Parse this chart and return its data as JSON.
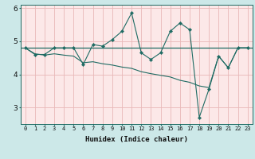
{
  "xlabel": "Humidex (Indice chaleur)",
  "fig_background": "#cce8e8",
  "plot_background": "#fce8e8",
  "line_color": "#1e6b63",
  "grid_color": "#e8b8b8",
  "spine_color": "#1e6b63",
  "x_values": [
    0,
    1,
    2,
    3,
    4,
    5,
    6,
    7,
    8,
    9,
    10,
    11,
    12,
    13,
    14,
    15,
    16,
    17,
    18,
    19,
    20,
    21,
    22,
    23
  ],
  "y_main": [
    4.8,
    4.6,
    4.6,
    4.8,
    4.8,
    4.8,
    4.3,
    4.9,
    4.85,
    5.05,
    5.3,
    5.85,
    4.65,
    4.45,
    4.65,
    5.3,
    5.55,
    5.35,
    2.7,
    3.55,
    4.55,
    4.2,
    4.8,
    4.8
  ],
  "y_trend": [
    4.8,
    4.62,
    4.58,
    4.62,
    4.58,
    4.55,
    4.35,
    4.38,
    4.32,
    4.28,
    4.22,
    4.18,
    4.08,
    4.02,
    3.97,
    3.92,
    3.82,
    3.76,
    3.65,
    3.6,
    4.55,
    4.2,
    4.8,
    4.8
  ],
  "y_avg": 4.8,
  "ylim": [
    2.5,
    6.1
  ],
  "yticks": [
    3,
    4,
    5,
    6
  ],
  "xlim": [
    -0.5,
    23.5
  ],
  "xtick_fontsize": 5.0,
  "ytick_fontsize": 6.5,
  "xlabel_fontsize": 6.5
}
